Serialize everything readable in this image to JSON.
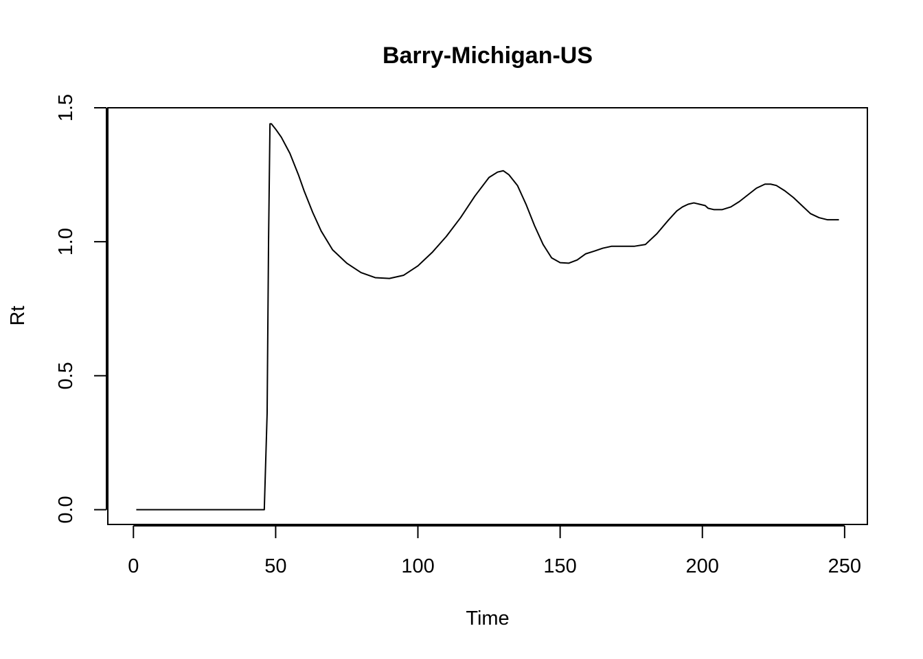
{
  "chart_data": {
    "type": "line",
    "title": "Barry-Michigan-US",
    "xlabel": "Time",
    "ylabel": "Rt",
    "xlim": [
      -9,
      258
    ],
    "ylim": [
      -0.055,
      1.5
    ],
    "x_ticks": [
      0,
      50,
      100,
      150,
      200,
      250
    ],
    "x_tick_labels": [
      "0",
      "50",
      "100",
      "150",
      "200",
      "250"
    ],
    "y_ticks": [
      0.0,
      0.5,
      1.0,
      1.5
    ],
    "y_tick_labels": [
      "0.0",
      "0.5",
      "1.0",
      "1.5"
    ],
    "grid": false,
    "line_color": "#000000",
    "series": [
      {
        "x": [
          1,
          10,
          20,
          30,
          40,
          46,
          47,
          47.5,
          48,
          48.5,
          50,
          52,
          55,
          58,
          60,
          63,
          66,
          70,
          75,
          80,
          85,
          90,
          95,
          100,
          105,
          110,
          115,
          120,
          125,
          128,
          130,
          132,
          135,
          138,
          141,
          144,
          147,
          150,
          153,
          156,
          159,
          162,
          165,
          168,
          172,
          176,
          180,
          184,
          188,
          191,
          193,
          195,
          197,
          199,
          201,
          202,
          204,
          207,
          210,
          213,
          216,
          219,
          222,
          224,
          226,
          229,
          232,
          235,
          238,
          241,
          244,
          246,
          248
        ],
        "y": [
          0,
          0,
          0,
          0,
          0,
          0,
          0.36,
          1.0,
          1.44,
          1.44,
          1.42,
          1.39,
          1.33,
          1.25,
          1.19,
          1.11,
          1.04,
          0.97,
          0.92,
          0.885,
          0.866,
          0.863,
          0.875,
          0.91,
          0.96,
          1.02,
          1.09,
          1.17,
          1.24,
          1.26,
          1.265,
          1.25,
          1.21,
          1.14,
          1.06,
          0.99,
          0.94,
          0.922,
          0.92,
          0.932,
          0.955,
          0.965,
          0.976,
          0.983,
          0.983,
          0.983,
          0.99,
          1.03,
          1.08,
          1.115,
          1.13,
          1.14,
          1.145,
          1.14,
          1.135,
          1.125,
          1.12,
          1.12,
          1.13,
          1.15,
          1.175,
          1.2,
          1.215,
          1.215,
          1.21,
          1.19,
          1.165,
          1.135,
          1.105,
          1.09,
          1.082,
          1.082,
          1.082
        ]
      }
    ]
  }
}
